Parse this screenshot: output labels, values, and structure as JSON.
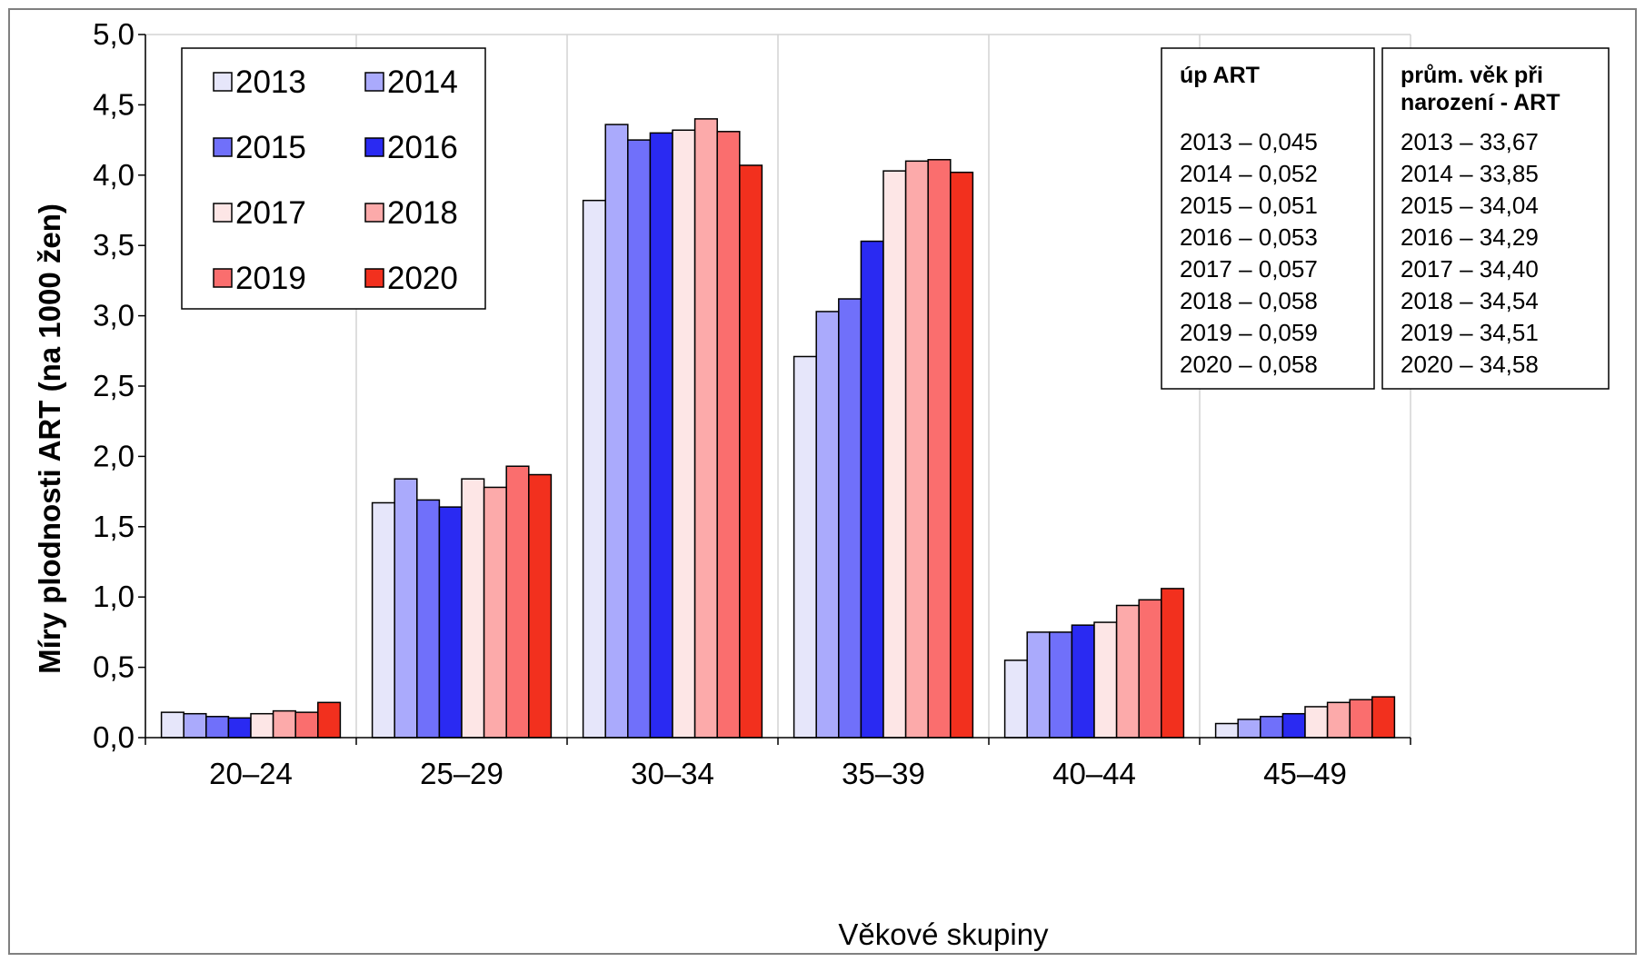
{
  "chart_data": {
    "type": "bar",
    "xlabel": "Věkové skupiny",
    "ylabel": "Míry plodnosti ART (na 1000 žen)",
    "ylim": [
      0,
      5
    ],
    "yticks": [
      "0,0",
      "0,5",
      "1,0",
      "1,5",
      "2,0",
      "2,5",
      "3,0",
      "3,5",
      "4,0",
      "4,5",
      "5,0"
    ],
    "grid": "vertical",
    "legend_position": "top-left",
    "categories": [
      "20–24",
      "25–29",
      "30–34",
      "35–39",
      "40–44",
      "45–49"
    ],
    "series": [
      {
        "name": "2013",
        "color": "#e6e6fa",
        "values": [
          0.18,
          1.67,
          3.82,
          2.71,
          0.55,
          0.1
        ]
      },
      {
        "name": "2014",
        "color": "#aaaafc",
        "values": [
          0.17,
          1.84,
          4.36,
          3.03,
          0.75,
          0.13
        ]
      },
      {
        "name": "2015",
        "color": "#7070fa",
        "values": [
          0.15,
          1.69,
          4.25,
          3.12,
          0.75,
          0.15
        ]
      },
      {
        "name": "2016",
        "color": "#2a2af2",
        "values": [
          0.14,
          1.64,
          4.3,
          3.53,
          0.8,
          0.17
        ]
      },
      {
        "name": "2017",
        "color": "#fde6e6",
        "values": [
          0.17,
          1.84,
          4.32,
          4.03,
          0.82,
          0.22
        ]
      },
      {
        "name": "2018",
        "color": "#fcaaaa",
        "values": [
          0.19,
          1.78,
          4.4,
          4.1,
          0.94,
          0.25
        ]
      },
      {
        "name": "2019",
        "color": "#fa6e6e",
        "values": [
          0.18,
          1.93,
          4.31,
          4.11,
          0.98,
          0.27
        ]
      },
      {
        "name": "2020",
        "color": "#f2301e",
        "values": [
          0.25,
          1.87,
          4.07,
          4.02,
          1.06,
          0.29
        ]
      }
    ],
    "annotations": [
      {
        "title_lines": [
          "úp ART"
        ],
        "lines": [
          "2013 – 0,045",
          "2014 – 0,052",
          "2015 – 0,051",
          "2016 – 0,053",
          "2017 – 0,057",
          "2018 – 0,058",
          "2019 – 0,059",
          "2020 – 0,058"
        ]
      },
      {
        "title_lines": [
          "prům. věk při",
          "narození - ART"
        ],
        "lines": [
          "2013 – 33,67",
          "2014 – 33,85",
          "2015 – 34,04",
          "2016 – 34,29",
          "2017 – 34,40",
          "2018 – 34,54",
          "2019 – 34,51",
          "2020 – 34,58"
        ]
      }
    ]
  }
}
